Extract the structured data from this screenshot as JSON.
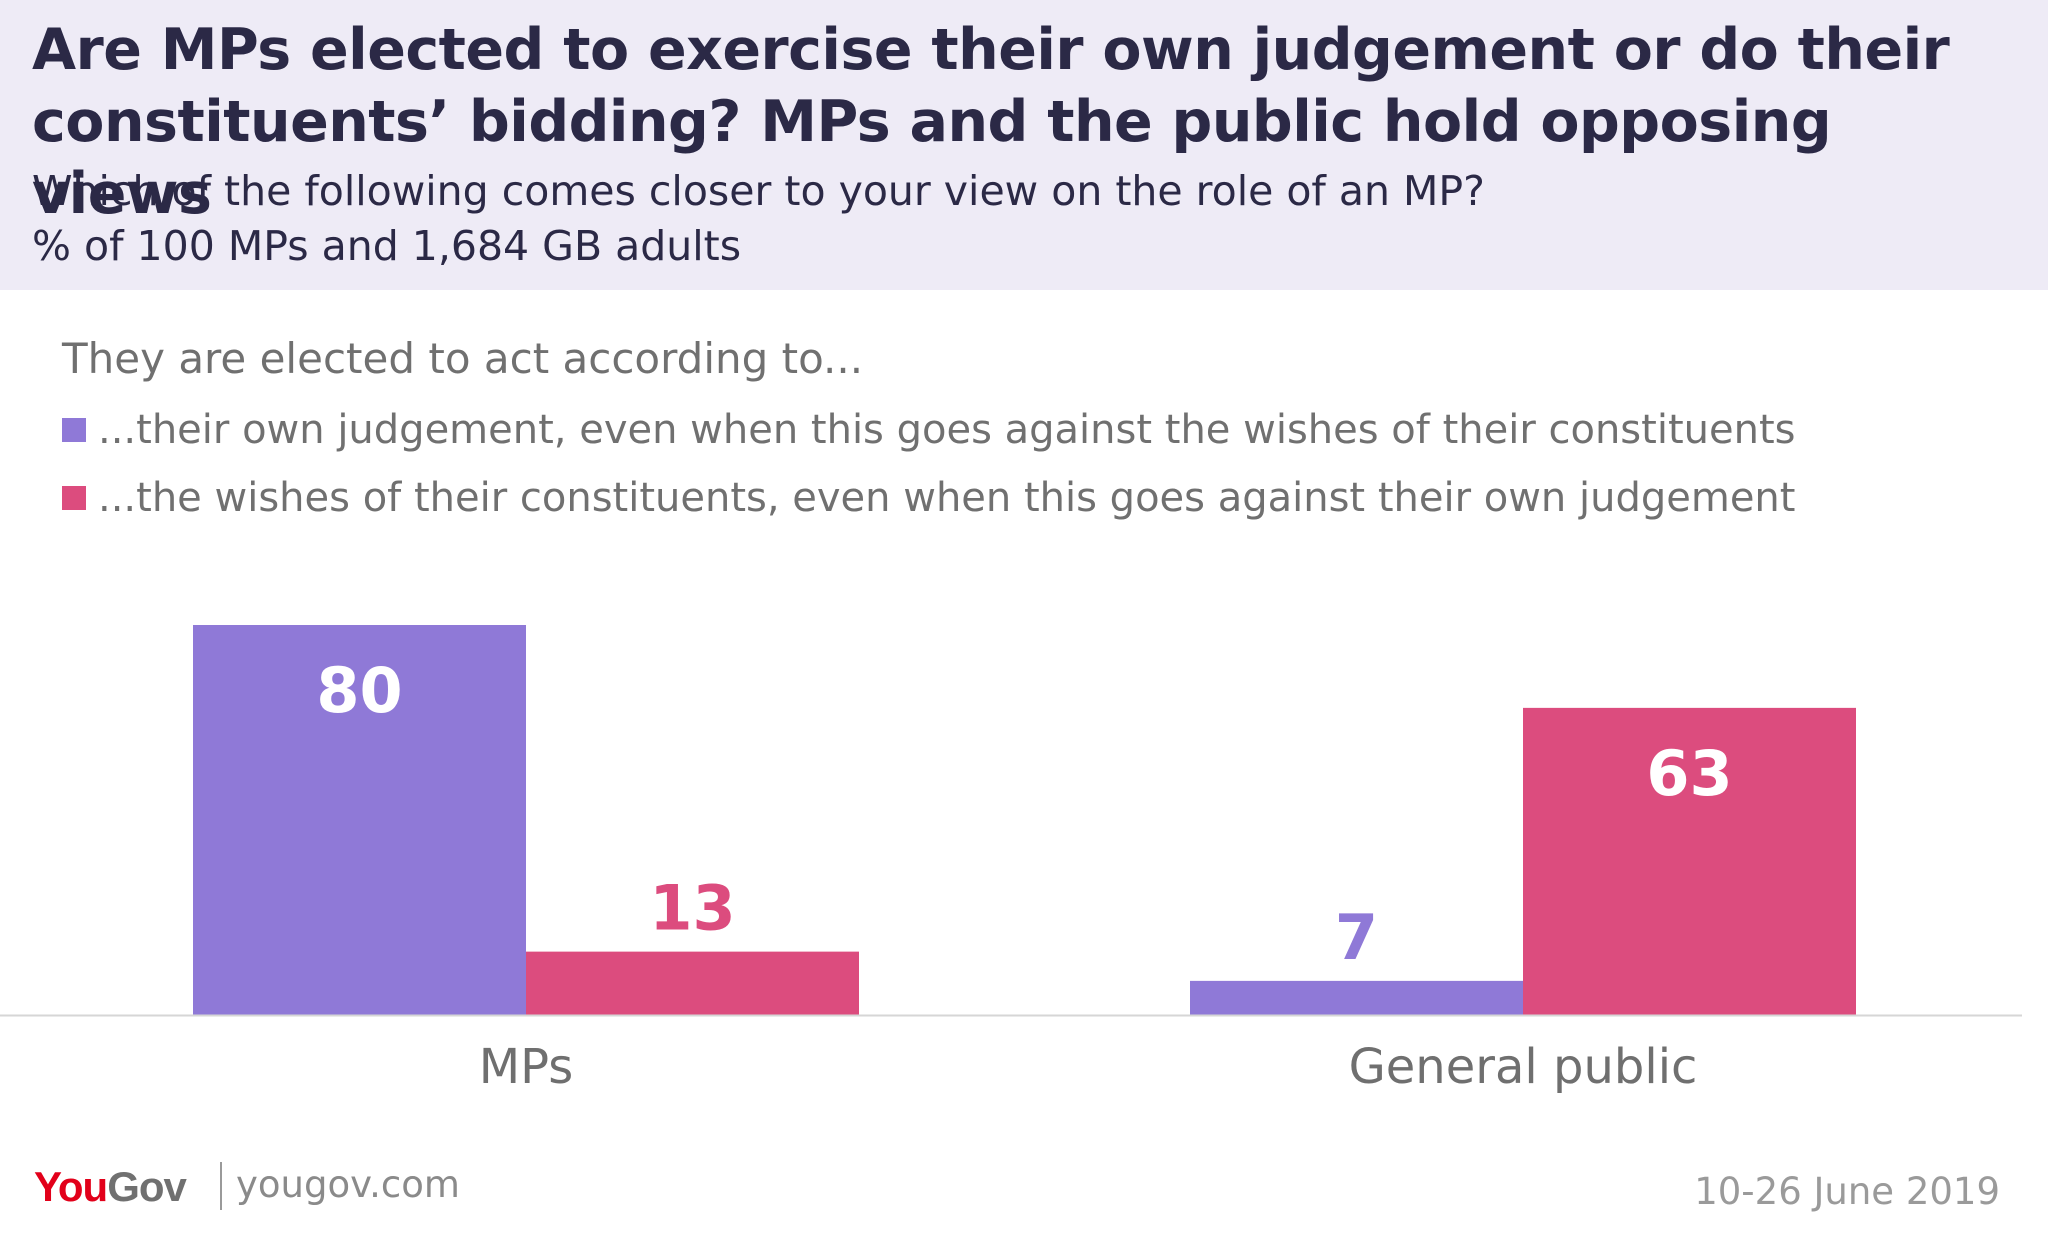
{
  "header": {
    "title": "Are MPs elected to exercise their own judgement or do their constituents’ bidding? MPs and the public hold opposing views",
    "subtitle": "Which of the following comes closer to your view on the role of an MP?",
    "base": "% of 100 MPs and 1,684 GB adults"
  },
  "legend": {
    "title": "They are elected to act according to...",
    "items": [
      {
        "label": "...their own judgement, even when this goes against the wishes of their constituents",
        "color": "#8f79d7"
      },
      {
        "label": "...the wishes of their constituents, even when this goes against their own judgement",
        "color": "#dc4c7e"
      }
    ]
  },
  "chart_data": {
    "type": "bar",
    "categories": [
      "MPs",
      "General public"
    ],
    "series": [
      {
        "values": [
          80,
          7
        ],
        "color": "#8f79d7"
      },
      {
        "values": [
          13,
          63
        ],
        "color": "#dc4c7e"
      }
    ],
    "xlabel": "",
    "ylabel": "",
    "ylim": [
      0,
      80
    ],
    "grid": false,
    "legend_position": "top-left"
  },
  "footer": {
    "logo_you": "You",
    "logo_gov": "Gov",
    "url": "yougov.com",
    "date": "10-26 June 2019"
  }
}
